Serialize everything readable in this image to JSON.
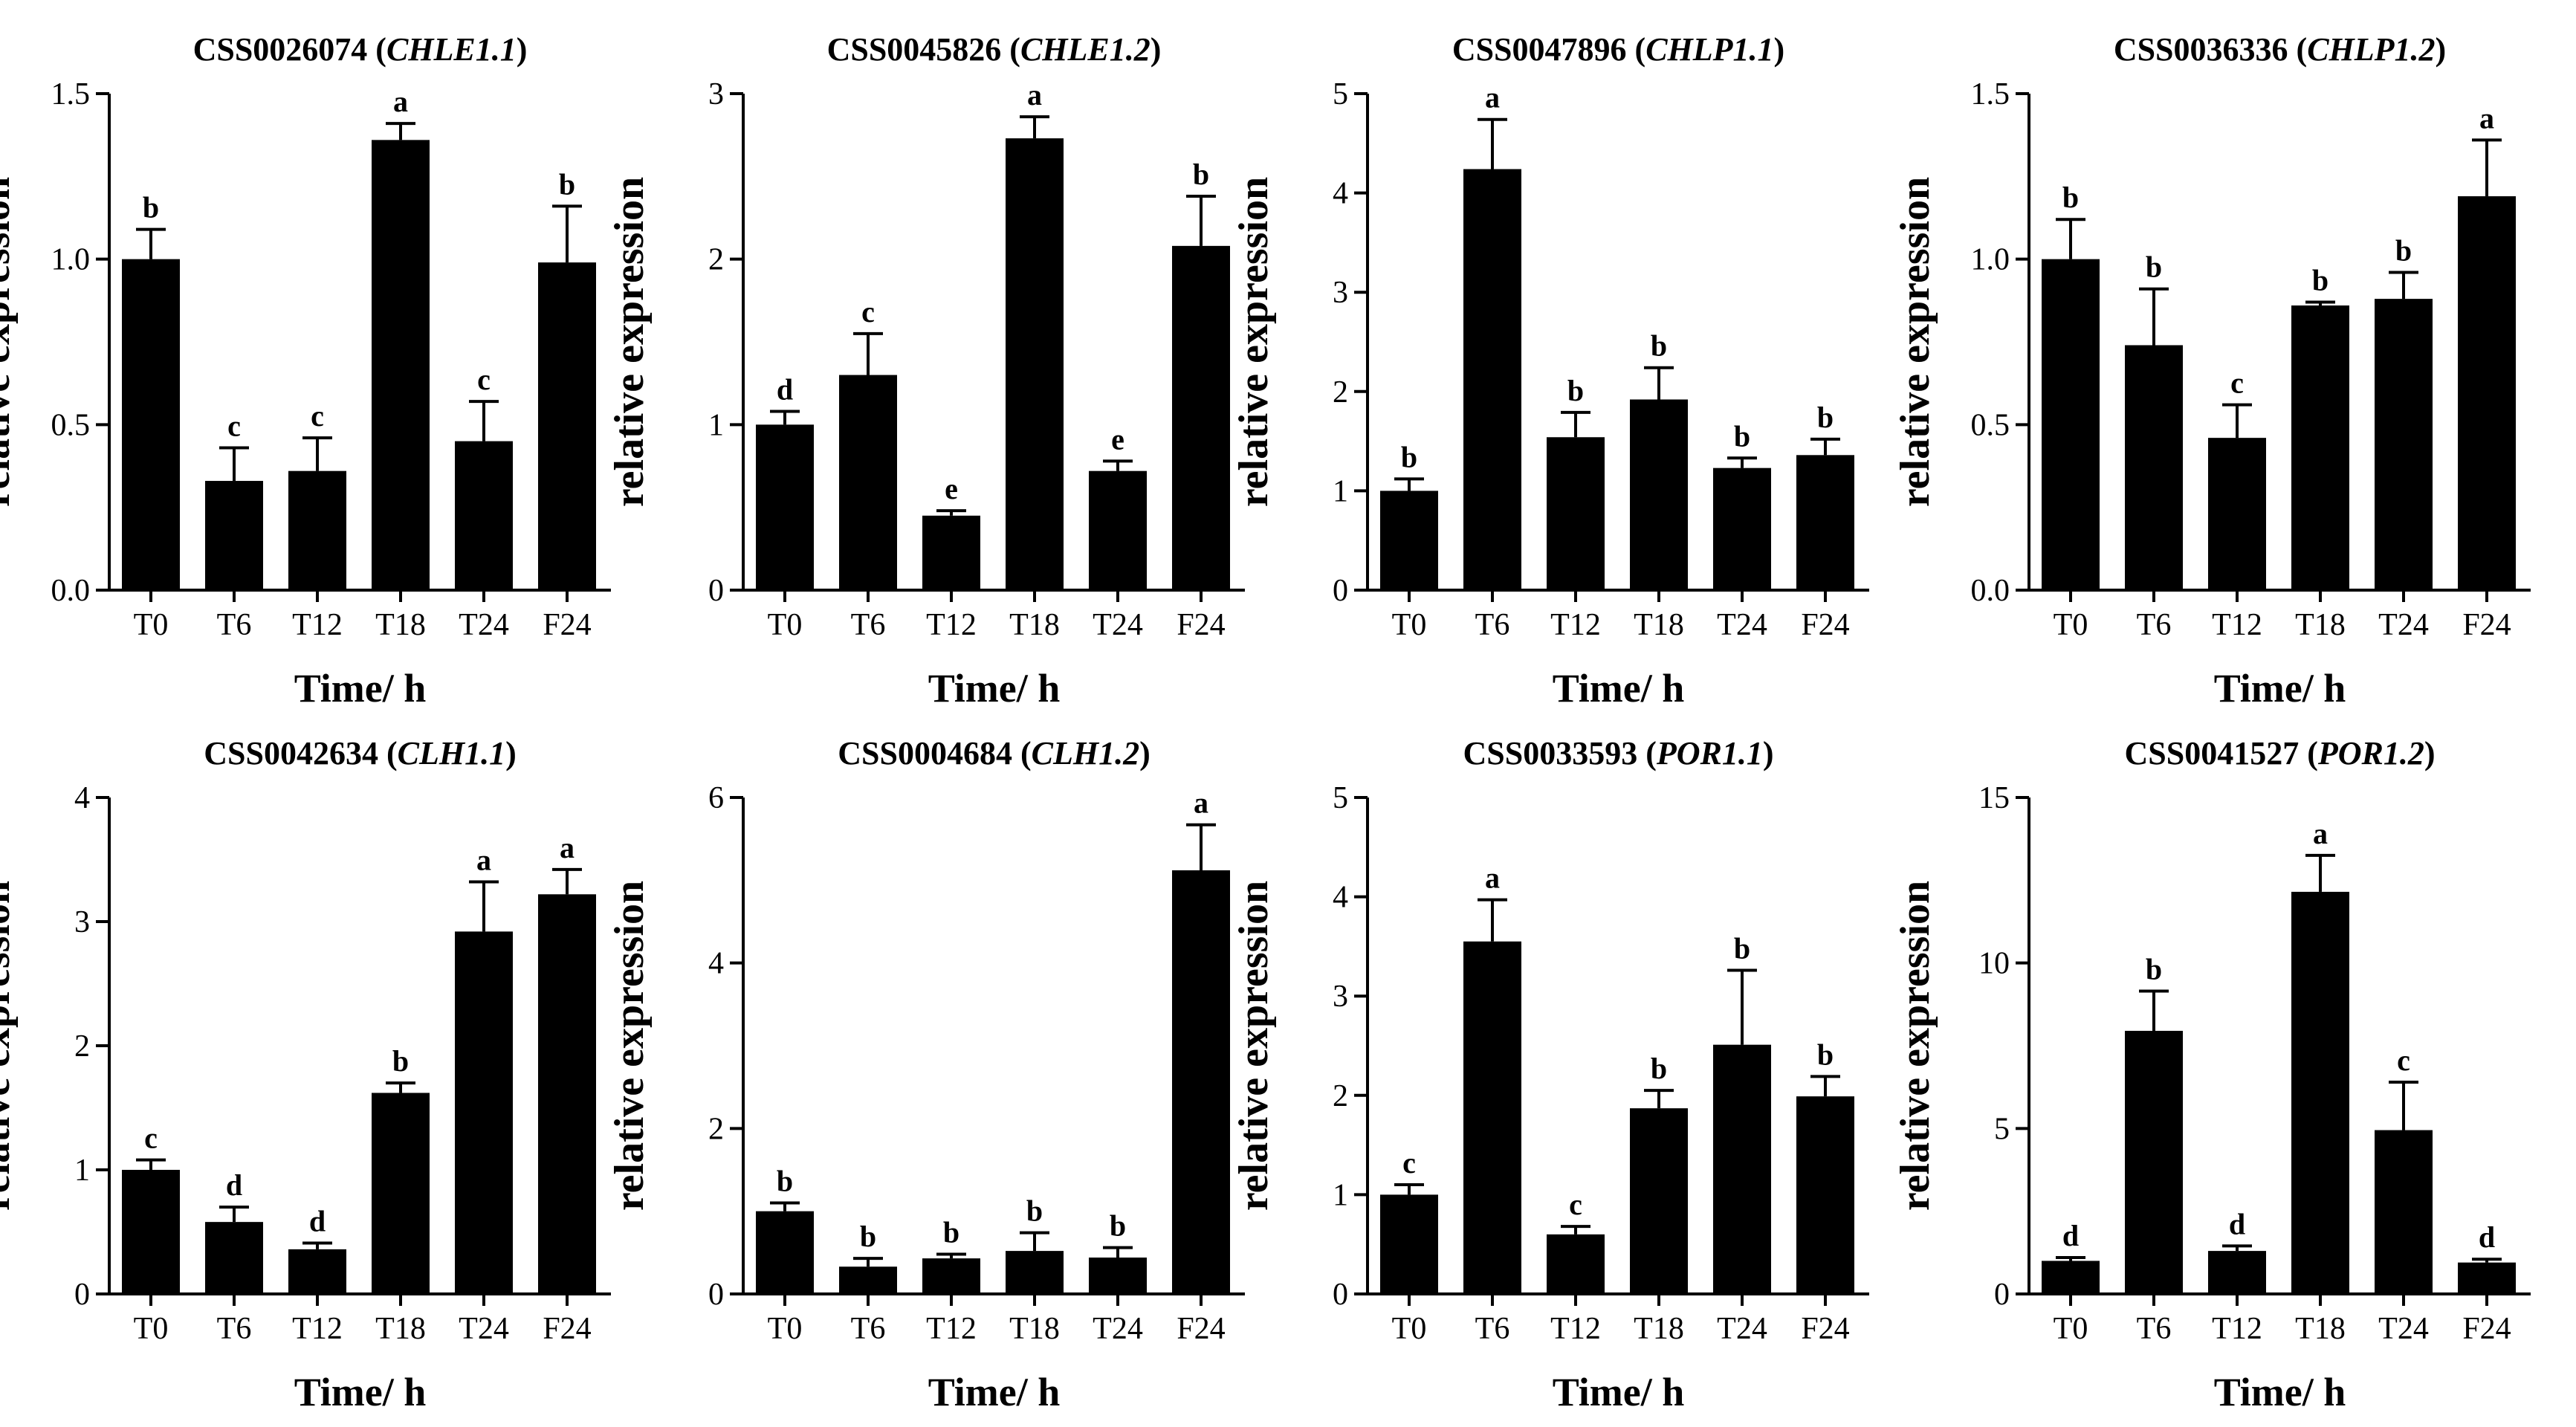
{
  "chart_data": [
    {
      "type": "bar",
      "title": "CSS0026074",
      "gene": "CHLE1.1",
      "xlabel": "Time/ h",
      "ylabel": "relative expression",
      "categories": [
        "T0",
        "T6",
        "T12",
        "T18",
        "T24",
        "F24"
      ],
      "values": [
        1.0,
        0.33,
        0.36,
        1.36,
        0.45,
        0.99
      ],
      "errors": [
        0.09,
        0.1,
        0.1,
        0.05,
        0.12,
        0.17
      ],
      "labels": [
        "b",
        "c",
        "c",
        "a",
        "c",
        "b"
      ],
      "ylim": [
        0,
        1.5
      ],
      "yticks": [
        "0.0",
        "0.5",
        "1.0",
        "1.5"
      ],
      "grid": false
    },
    {
      "type": "bar",
      "title": "CSS0045826",
      "gene": "CHLE1.2",
      "xlabel": "Time/ h",
      "ylabel": "relative expression",
      "categories": [
        "T0",
        "T6",
        "T12",
        "T18",
        "T24",
        "F24"
      ],
      "values": [
        1.0,
        1.3,
        0.45,
        2.73,
        0.72,
        2.08
      ],
      "errors": [
        0.08,
        0.25,
        0.03,
        0.13,
        0.06,
        0.3
      ],
      "labels": [
        "d",
        "c",
        "e",
        "a",
        "e",
        "b"
      ],
      "ylim": [
        0,
        3
      ],
      "yticks": [
        "0",
        "1",
        "2",
        "3"
      ],
      "grid": false
    },
    {
      "type": "bar",
      "title": "CSS0047896",
      "gene": "CHLP1.1",
      "xlabel": "Time/ h",
      "ylabel": "relative expression",
      "categories": [
        "T0",
        "T6",
        "T12",
        "T18",
        "T24",
        "F24"
      ],
      "values": [
        1.0,
        4.24,
        1.54,
        1.92,
        1.23,
        1.36
      ],
      "errors": [
        0.12,
        0.5,
        0.25,
        0.32,
        0.1,
        0.16
      ],
      "labels": [
        "b",
        "a",
        "b",
        "b",
        "b",
        "b"
      ],
      "ylim": [
        0,
        5
      ],
      "yticks": [
        "0",
        "1",
        "2",
        "3",
        "4",
        "5"
      ],
      "grid": false
    },
    {
      "type": "bar",
      "title": "CSS0036336",
      "gene": "CHLP1.2",
      "xlabel": "Time/ h",
      "ylabel": "relative expression",
      "categories": [
        "T0",
        "T6",
        "T12",
        "T18",
        "T24",
        "F24"
      ],
      "values": [
        1.0,
        0.74,
        0.46,
        0.86,
        0.88,
        1.19
      ],
      "errors": [
        0.12,
        0.17,
        0.1,
        0.01,
        0.08,
        0.17
      ],
      "labels": [
        "b",
        "b",
        "c",
        "b",
        "b",
        "a"
      ],
      "ylim": [
        0,
        1.5
      ],
      "yticks": [
        "0.0",
        "0.5",
        "1.0",
        "1.5"
      ],
      "grid": false
    },
    {
      "type": "bar",
      "title": "CSS0042634",
      "gene": "CLH1.1",
      "xlabel": "Time/ h",
      "ylabel": "relative expression",
      "categories": [
        "T0",
        "T6",
        "T12",
        "T18",
        "T24",
        "F24"
      ],
      "values": [
        1.0,
        0.58,
        0.36,
        1.62,
        2.92,
        3.22
      ],
      "errors": [
        0.08,
        0.12,
        0.05,
        0.08,
        0.4,
        0.2
      ],
      "labels": [
        "c",
        "d",
        "d",
        "b",
        "a",
        "a"
      ],
      "ylim": [
        0,
        4
      ],
      "yticks": [
        "0",
        "1",
        "2",
        "3",
        "4"
      ],
      "grid": false
    },
    {
      "type": "bar",
      "title": "CSS0004684",
      "gene": "CLH1.2",
      "xlabel": "Time/ h",
      "ylabel": "relative expression",
      "categories": [
        "T0",
        "T6",
        "T12",
        "T18",
        "T24",
        "F24"
      ],
      "values": [
        1.0,
        0.33,
        0.43,
        0.52,
        0.44,
        5.12
      ],
      "errors": [
        0.1,
        0.1,
        0.05,
        0.22,
        0.12,
        0.55
      ],
      "labels": [
        "b",
        "b",
        "b",
        "b",
        "b",
        "a"
      ],
      "ylim": [
        0,
        6
      ],
      "yticks": [
        "0",
        "2",
        "4",
        "6"
      ],
      "grid": false
    },
    {
      "type": "bar",
      "title": "CSS0033593",
      "gene": "POR1.1",
      "xlabel": "Time/ h",
      "ylabel": "relative expression",
      "categories": [
        "T0",
        "T6",
        "T12",
        "T18",
        "T24",
        "F24"
      ],
      "values": [
        1.0,
        3.55,
        0.6,
        1.87,
        2.51,
        1.99
      ],
      "errors": [
        0.1,
        0.42,
        0.08,
        0.18,
        0.75,
        0.2
      ],
      "labels": [
        "c",
        "a",
        "c",
        "b",
        "b",
        "b"
      ],
      "ylim": [
        0,
        5
      ],
      "yticks": [
        "0",
        "1",
        "2",
        "3",
        "4",
        "5"
      ],
      "grid": false
    },
    {
      "type": "bar",
      "title": "CSS0041527",
      "gene": "POR1.2",
      "xlabel": "Time/ h",
      "ylabel": "relative expression",
      "categories": [
        "T0",
        "T6",
        "T12",
        "T18",
        "T24",
        "F24"
      ],
      "values": [
        1.0,
        7.95,
        1.3,
        12.15,
        4.95,
        0.95
      ],
      "errors": [
        0.1,
        1.2,
        0.15,
        1.1,
        1.45,
        0.1
      ],
      "labels": [
        "d",
        "b",
        "d",
        "a",
        "c",
        "d"
      ],
      "ylim": [
        0,
        15
      ],
      "yticks": [
        "0",
        "5",
        "10",
        "15"
      ],
      "grid": false
    }
  ],
  "colors": {
    "bar": "#000000",
    "axis": "#000000",
    "background": "#ffffff"
  }
}
